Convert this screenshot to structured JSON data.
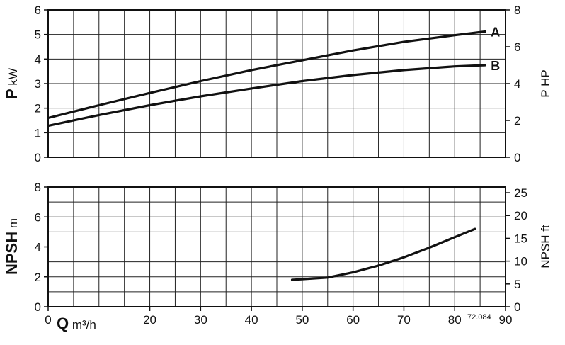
{
  "chart_data": [
    {
      "type": "line",
      "title": "",
      "xlabel": "",
      "ylabel": {
        "symbol": "P",
        "unit": "kW"
      },
      "ylabel_right": "P HP",
      "xlim": [
        0,
        90
      ],
      "ylim": [
        0,
        6
      ],
      "ylim_right": [
        0,
        8
      ],
      "x_ticks": [],
      "y_ticks": [
        "0",
        "1",
        "2",
        "3",
        "4",
        "5",
        "6"
      ],
      "y_ticks_right": [
        "0",
        "2",
        "4",
        "6",
        "8"
      ],
      "grid": true,
      "series": [
        {
          "name": "A",
          "x": [
            0,
            10,
            20,
            30,
            40,
            50,
            60,
            70,
            80,
            86
          ],
          "y": [
            1.6,
            2.12,
            2.62,
            3.1,
            3.55,
            3.95,
            4.35,
            4.7,
            4.97,
            5.12
          ]
        },
        {
          "name": "B",
          "x": [
            0,
            10,
            20,
            30,
            40,
            50,
            60,
            70,
            80,
            86
          ],
          "y": [
            1.28,
            1.72,
            2.12,
            2.48,
            2.8,
            3.1,
            3.35,
            3.55,
            3.7,
            3.75
          ]
        }
      ]
    },
    {
      "type": "line",
      "title": "",
      "xlabel": {
        "symbol": "Q",
        "unit": "m³/h"
      },
      "ylabel": {
        "symbol": "NPSH",
        "unit": "m"
      },
      "ylabel_right": "NPSH ft",
      "xlim": [
        0,
        90
      ],
      "ylim": [
        0,
        8
      ],
      "ylim_right": [
        0,
        26.25
      ],
      "x_ticks": [
        "0",
        "20",
        "30",
        "40",
        "50",
        "60",
        "70",
        "80",
        "90"
      ],
      "y_ticks": [
        "0",
        "2",
        "4",
        "6",
        "8"
      ],
      "y_ticks_right": [
        "0",
        "5",
        "10",
        "15",
        "20",
        "25"
      ],
      "grid": true,
      "series": [
        {
          "name": "",
          "x": [
            48,
            55,
            60,
            65,
            70,
            75,
            80,
            84
          ],
          "y": [
            1.8,
            1.95,
            2.3,
            2.75,
            3.3,
            3.95,
            4.65,
            5.2
          ]
        }
      ],
      "annotation": "72.084"
    }
  ]
}
